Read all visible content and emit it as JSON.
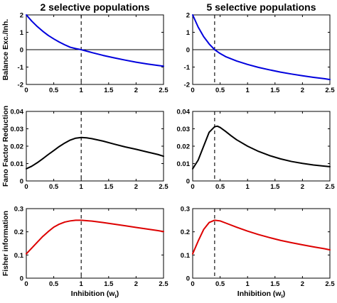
{
  "chart_data": {
    "columns": [
      {
        "title": "2 selective populations",
        "xlabel": "Inhibition (w",
        "xlabel_sub": "I",
        "xlabel_end": ")"
      },
      {
        "title": "5 selective populations",
        "xlabel": "Inhibition (w",
        "xlabel_sub": "I",
        "xlabel_end": ")"
      }
    ],
    "x_ticks": [
      "0",
      "0.5",
      "1",
      "1.5",
      "2",
      "2.5"
    ],
    "x_tick_values": [
      0,
      0.5,
      1,
      1.5,
      2,
      2.5
    ],
    "rows": [
      {
        "ylabel": "Balance Exc./Inh.",
        "ylim": [
          -2,
          2
        ],
        "y_ticks": [
          "2",
          "1",
          "0",
          "-1",
          "-2"
        ],
        "y_tick_values": [
          2,
          1,
          0,
          -1,
          -2
        ]
      },
      {
        "ylabel": "Fano Factor Reduction",
        "ylim": [
          0,
          0.04
        ],
        "y_ticks": [
          "0.04",
          "0.03",
          "0.02",
          "0.01",
          "0"
        ],
        "y_tick_values": [
          0.04,
          0.03,
          0.02,
          0.01,
          0
        ]
      },
      {
        "ylabel": "Fisher information",
        "ylim": [
          0,
          0.3
        ],
        "y_ticks": [
          "0.3",
          "0.2",
          "0.1",
          "0"
        ],
        "y_tick_values": [
          0.3,
          0.2,
          0.1,
          0
        ]
      }
    ],
    "panels": [
      {
        "type": "line",
        "row": 0,
        "col": 0,
        "color": "#0000dd",
        "xlim": [
          0,
          2.5
        ],
        "ylim": [
          -2,
          2
        ],
        "hline": 0,
        "vline": 1,
        "x": [
          0,
          0.1,
          0.2,
          0.3,
          0.4,
          0.5,
          0.6,
          0.7,
          0.8,
          0.9,
          1.0,
          1.2,
          1.4,
          1.6,
          1.8,
          2.0,
          2.2,
          2.4,
          2.5
        ],
        "y": [
          2.0,
          1.64,
          1.33,
          1.06,
          0.82,
          0.62,
          0.44,
          0.28,
          0.14,
          0.06,
          0.0,
          -0.17,
          -0.33,
          -0.47,
          -0.6,
          -0.72,
          -0.82,
          -0.91,
          -0.95
        ]
      },
      {
        "type": "line",
        "row": 0,
        "col": 1,
        "color": "#0000dd",
        "xlim": [
          0,
          2.5
        ],
        "ylim": [
          -2,
          2
        ],
        "hline": 0,
        "vline": 0.4,
        "x": [
          0,
          0.1,
          0.2,
          0.3,
          0.4,
          0.5,
          0.6,
          0.8,
          1.0,
          1.2,
          1.4,
          1.6,
          1.8,
          2.0,
          2.2,
          2.4,
          2.5
        ],
        "y": [
          2.0,
          1.3,
          0.75,
          0.33,
          0.0,
          -0.22,
          -0.4,
          -0.65,
          -0.85,
          -1.02,
          -1.16,
          -1.29,
          -1.4,
          -1.5,
          -1.59,
          -1.67,
          -1.72
        ]
      },
      {
        "type": "line",
        "row": 1,
        "col": 0,
        "color": "#000000",
        "xlim": [
          0,
          2.5
        ],
        "ylim": [
          0,
          0.04
        ],
        "vline": 1,
        "x": [
          0,
          0.1,
          0.2,
          0.3,
          0.4,
          0.5,
          0.6,
          0.7,
          0.8,
          0.9,
          1.0,
          1.1,
          1.2,
          1.4,
          1.6,
          1.8,
          2.0,
          2.2,
          2.4,
          2.5
        ],
        "y": [
          0.007,
          0.0085,
          0.0105,
          0.0128,
          0.0152,
          0.0175,
          0.0198,
          0.0218,
          0.0235,
          0.0246,
          0.025,
          0.0248,
          0.0243,
          0.0229,
          0.0212,
          0.0196,
          0.0182,
          0.0167,
          0.0152,
          0.0142
        ]
      },
      {
        "type": "line",
        "row": 1,
        "col": 1,
        "color": "#000000",
        "xlim": [
          0,
          2.5
        ],
        "ylim": [
          0,
          0.04
        ],
        "vline": 0.4,
        "x": [
          0,
          0.1,
          0.2,
          0.3,
          0.4,
          0.45,
          0.5,
          0.6,
          0.7,
          0.8,
          1.0,
          1.2,
          1.4,
          1.6,
          1.8,
          2.0,
          2.2,
          2.4,
          2.5
        ],
        "y": [
          0.007,
          0.012,
          0.02,
          0.028,
          0.0312,
          0.0315,
          0.0308,
          0.0285,
          0.026,
          0.0237,
          0.02,
          0.017,
          0.0146,
          0.0127,
          0.0112,
          0.0101,
          0.0092,
          0.0085,
          0.0082
        ]
      },
      {
        "type": "line",
        "row": 2,
        "col": 0,
        "color": "#dd0000",
        "xlim": [
          0,
          2.5
        ],
        "ylim": [
          0,
          0.3
        ],
        "vline": 1,
        "x": [
          0,
          0.1,
          0.2,
          0.3,
          0.4,
          0.5,
          0.6,
          0.7,
          0.8,
          0.9,
          1.0,
          1.2,
          1.4,
          1.6,
          1.8,
          2.0,
          2.2,
          2.4,
          2.5
        ],
        "y": [
          0.105,
          0.13,
          0.155,
          0.18,
          0.201,
          0.22,
          0.233,
          0.242,
          0.247,
          0.25,
          0.25,
          0.246,
          0.24,
          0.233,
          0.226,
          0.219,
          0.212,
          0.205,
          0.201
        ]
      },
      {
        "type": "line",
        "row": 2,
        "col": 1,
        "color": "#dd0000",
        "xlim": [
          0,
          2.5
        ],
        "ylim": [
          0,
          0.3
        ],
        "vline": 0.4,
        "x": [
          0,
          0.1,
          0.2,
          0.3,
          0.4,
          0.5,
          0.6,
          0.8,
          1.0,
          1.2,
          1.4,
          1.6,
          1.8,
          2.0,
          2.2,
          2.4,
          2.5
        ],
        "y": [
          0.105,
          0.16,
          0.21,
          0.24,
          0.25,
          0.247,
          0.238,
          0.22,
          0.203,
          0.188,
          0.175,
          0.163,
          0.153,
          0.144,
          0.135,
          0.127,
          0.122
        ]
      }
    ]
  }
}
